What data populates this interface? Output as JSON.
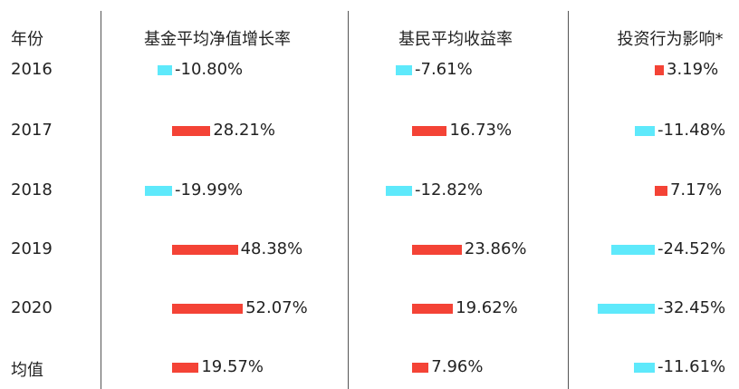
{
  "chart_data": {
    "type": "table",
    "columns": [
      "年份",
      "基金平均净值增长率",
      "基民平均收益率",
      "投资行为影响*"
    ],
    "rows": [
      {
        "year": "2016",
        "values": [
          -10.8,
          -7.61,
          3.19
        ],
        "labels": [
          "-10.80%",
          "-7.61%",
          "3.19%"
        ]
      },
      {
        "year": "2017",
        "values": [
          28.21,
          16.73,
          -11.48
        ],
        "labels": [
          "28.21%",
          "16.73%",
          "-11.48%"
        ]
      },
      {
        "year": "2018",
        "values": [
          -19.99,
          -12.82,
          7.17
        ],
        "labels": [
          "-19.99%",
          "-12.82%",
          "7.17%"
        ]
      },
      {
        "year": "2019",
        "values": [
          48.38,
          23.86,
          -24.52
        ],
        "labels": [
          "48.38%",
          "23.86%",
          "-24.52%"
        ]
      },
      {
        "year": "2020",
        "values": [
          52.07,
          19.62,
          -32.45
        ],
        "labels": [
          "52.07%",
          "19.62%",
          "-32.45%"
        ]
      },
      {
        "year": "均值",
        "values": [
          19.57,
          7.96,
          -11.61
        ],
        "labels": [
          "19.57%",
          "7.96%",
          "-11.61%"
        ]
      }
    ],
    "colors": {
      "positive": "#f44336",
      "negative": "#5ee9fb"
    }
  }
}
